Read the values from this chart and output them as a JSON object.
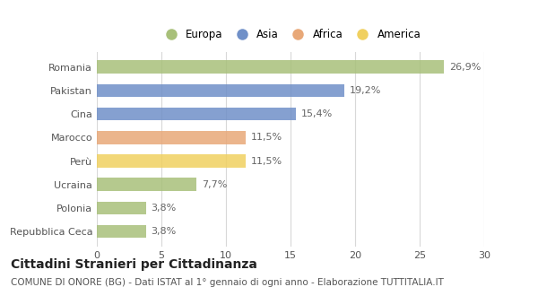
{
  "categories": [
    "Repubblica Ceca",
    "Polonia",
    "Ucraina",
    "Perù",
    "Marocco",
    "Cina",
    "Pakistan",
    "Romania"
  ],
  "values": [
    3.8,
    3.8,
    7.7,
    11.5,
    11.5,
    15.4,
    19.2,
    26.9
  ],
  "labels": [
    "3,8%",
    "3,8%",
    "7,7%",
    "11,5%",
    "11,5%",
    "15,4%",
    "19,2%",
    "26,9%"
  ],
  "colors": [
    "#a8c07a",
    "#a8c07a",
    "#a8c07a",
    "#f0d060",
    "#e8a878",
    "#7090c8",
    "#7090c8",
    "#a8c07a"
  ],
  "legend": [
    {
      "label": "Europa",
      "color": "#a8c07a"
    },
    {
      "label": "Asia",
      "color": "#7090c8"
    },
    {
      "label": "Africa",
      "color": "#e8a878"
    },
    {
      "label": "America",
      "color": "#f0d060"
    }
  ],
  "xlim": [
    0,
    30
  ],
  "xticks": [
    0,
    5,
    10,
    15,
    20,
    25,
    30
  ],
  "title_main": "Cittadini Stranieri per Cittadinanza",
  "title_sub": "COMUNE DI ONORE (BG) - Dati ISTAT al 1° gennaio di ogni anno - Elaborazione TUTTITALIA.IT",
  "background_color": "#ffffff",
  "grid_color": "#d8d8d8",
  "bar_height": 0.55,
  "label_fontsize": 8,
  "tick_fontsize": 8,
  "title_main_fontsize": 10,
  "title_sub_fontsize": 7.5,
  "legend_fontsize": 8.5
}
